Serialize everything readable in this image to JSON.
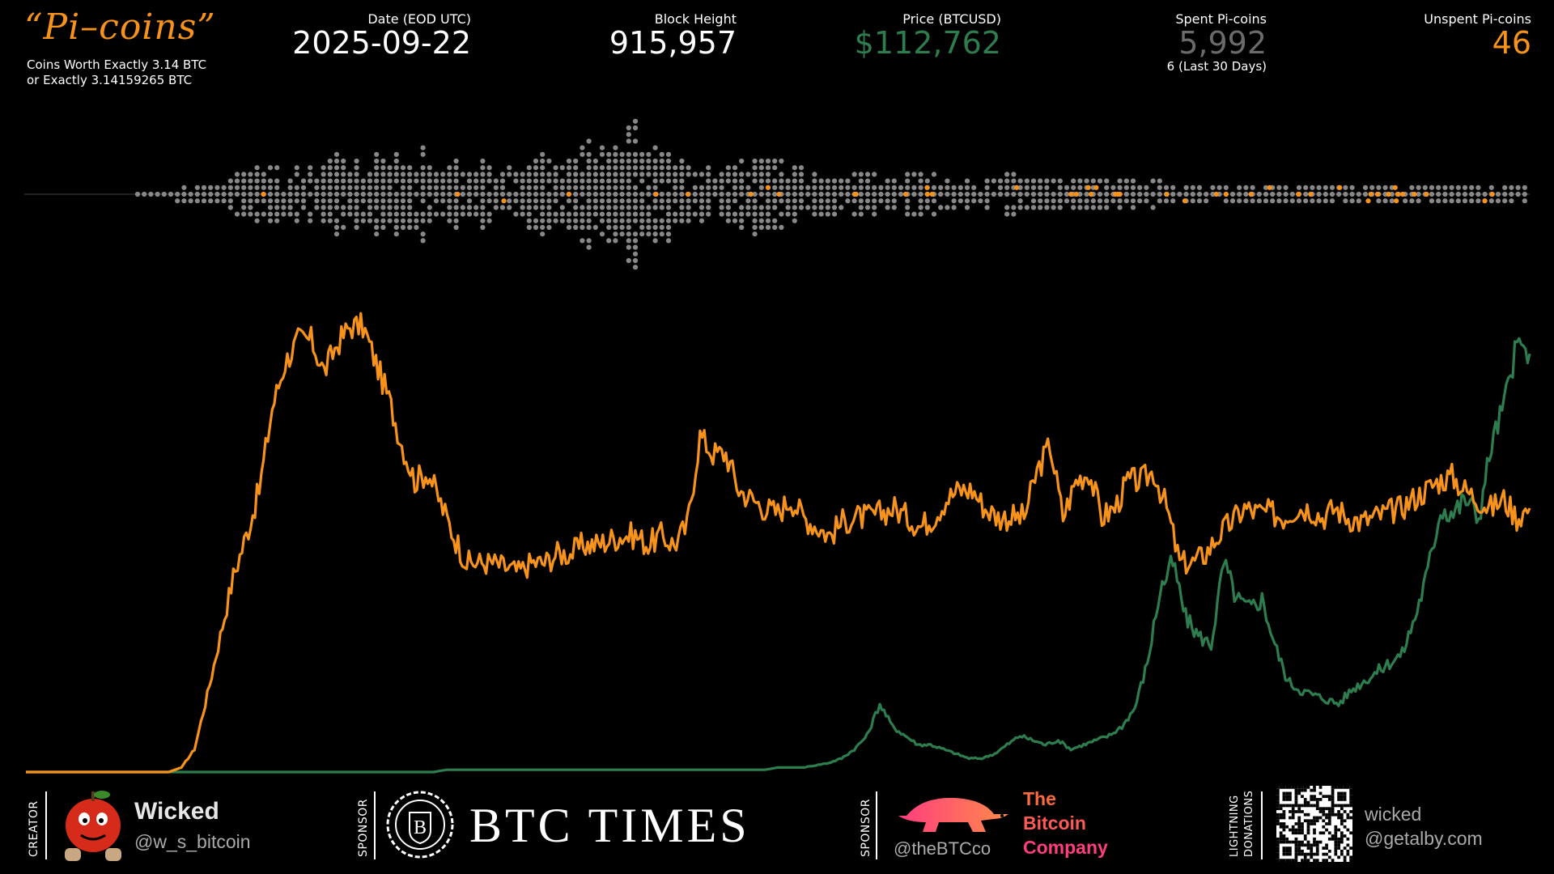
{
  "header": {
    "logo_text": "“Pi–coins”",
    "tagline_1": "Coins Worth Exactly 3.14 BTC",
    "tagline_2": "or Exactly 3.14159265 BTC",
    "date_label": "Date (EOD UTC)",
    "date_value": "2025-09-22",
    "block_label": "Block Height",
    "block_value": "915,957",
    "price_label": "Price (BTCUSD)",
    "price_value": "$112,762",
    "spent_label": "Spent Pi-coins",
    "spent_value": "5,992",
    "spent_sub": "6 (Last 30 Days)",
    "unspent_label": "Unspent Pi-coins",
    "unspent_value": "46"
  },
  "colors": {
    "orange": "#f7931a",
    "green": "#2e7d4f",
    "gray": "#888888",
    "dim_gray": "#6b6b6b"
  },
  "chart_data": [
    {
      "type": "scatter",
      "description_kind": "beeswarm",
      "series": [
        {
          "role": "spent",
          "color": "#888888",
          "density_profile": [
            0,
            0,
            1,
            1,
            2,
            3,
            4,
            4,
            4,
            5,
            5,
            6,
            6,
            6,
            5,
            5,
            4,
            4,
            5,
            6,
            7,
            9,
            10,
            9,
            7,
            5,
            4,
            4,
            5,
            5,
            4,
            3,
            3,
            3,
            2,
            3,
            3,
            2,
            2,
            2,
            3,
            2,
            2,
            2,
            2,
            2,
            2,
            1,
            1,
            1,
            1,
            1,
            1,
            1,
            1,
            1,
            1,
            1,
            1,
            1,
            1,
            1,
            1,
            1
          ]
        },
        {
          "role": "unspent",
          "color": "#f7931a",
          "count": 46
        }
      ]
    },
    {
      "type": "line",
      "series": [
        {
          "color": "#f7931a",
          "values": [
            0,
            0,
            0,
            0,
            0,
            0,
            0,
            0,
            0,
            0,
            0,
            0,
            1,
            5,
            17,
            30,
            43,
            52,
            62,
            80,
            90,
            95,
            95,
            88,
            94,
            98,
            98,
            90,
            82,
            72,
            64,
            66,
            59,
            52,
            46,
            46,
            46,
            45,
            44,
            46,
            46,
            48,
            48,
            50,
            50,
            51,
            52,
            52,
            50,
            52,
            50,
            54,
            74,
            70,
            70,
            62,
            60,
            58,
            57,
            60,
            56,
            54,
            52,
            55,
            56,
            56,
            57,
            58,
            56,
            54,
            56,
            60,
            62,
            62,
            58,
            56,
            56,
            56,
            66,
            72,
            56,
            64,
            66,
            56,
            58,
            64,
            64,
            66,
            58,
            46,
            46,
            48,
            52,
            55,
            58,
            57,
            57,
            56,
            58,
            58,
            56,
            58,
            56,
            55,
            56,
            57,
            58,
            60,
            62,
            64,
            65,
            62,
            60,
            58,
            60,
            56,
            58
          ]
        },
        {
          "color": "#2e7d4f",
          "values": [
            0,
            0,
            0,
            0,
            0,
            0,
            0,
            0,
            0,
            0,
            0,
            0,
            0,
            0,
            0,
            0,
            0,
            0,
            0,
            0,
            0,
            0,
            0,
            0,
            0,
            0,
            0,
            0,
            0,
            0,
            0,
            0,
            0,
            0.5,
            0.5,
            0.5,
            0.5,
            0.5,
            0.5,
            0.5,
            0.5,
            0.5,
            0.5,
            0.5,
            0.5,
            0.5,
            0.5,
            0.5,
            0.5,
            0.5,
            0.5,
            0.5,
            0.5,
            0.5,
            0.5,
            0.5,
            0.5,
            0.5,
            0.5,
            1,
            1,
            1,
            1.5,
            2,
            3,
            5,
            8,
            15,
            10,
            8,
            6,
            6,
            5,
            4,
            3,
            3,
            4,
            6,
            8,
            7,
            6,
            7,
            5,
            6,
            7,
            8,
            10,
            14,
            24,
            40,
            46,
            34,
            30,
            28,
            46,
            38,
            36,
            38,
            28,
            20,
            18,
            17,
            16,
            15,
            18,
            20,
            22,
            24,
            26,
            34,
            44,
            58,
            57,
            60,
            56,
            72,
            81,
            94,
            92
          ]
        }
      ]
    }
  ],
  "footer": {
    "creator_label": "CREATOR",
    "creator_name": "Wicked",
    "creator_handle": "@w_s_bitcoin",
    "sponsor1_label": "SPONSOR",
    "sponsor1_name": "BTC TIMES",
    "sponsor1_monogram": "B",
    "sponsor2_label": "SPONSOR",
    "sponsor2_handle": "@theBTCco",
    "sponsor2_name_1": "The",
    "sponsor2_name_2": "Bitcoin",
    "sponsor2_name_3": "Company",
    "lightning_label_1": "LIGHTNING",
    "lightning_label_2": "DONATIONS",
    "lightning_line1": "wicked",
    "lightning_line2": "@getalby.com"
  }
}
